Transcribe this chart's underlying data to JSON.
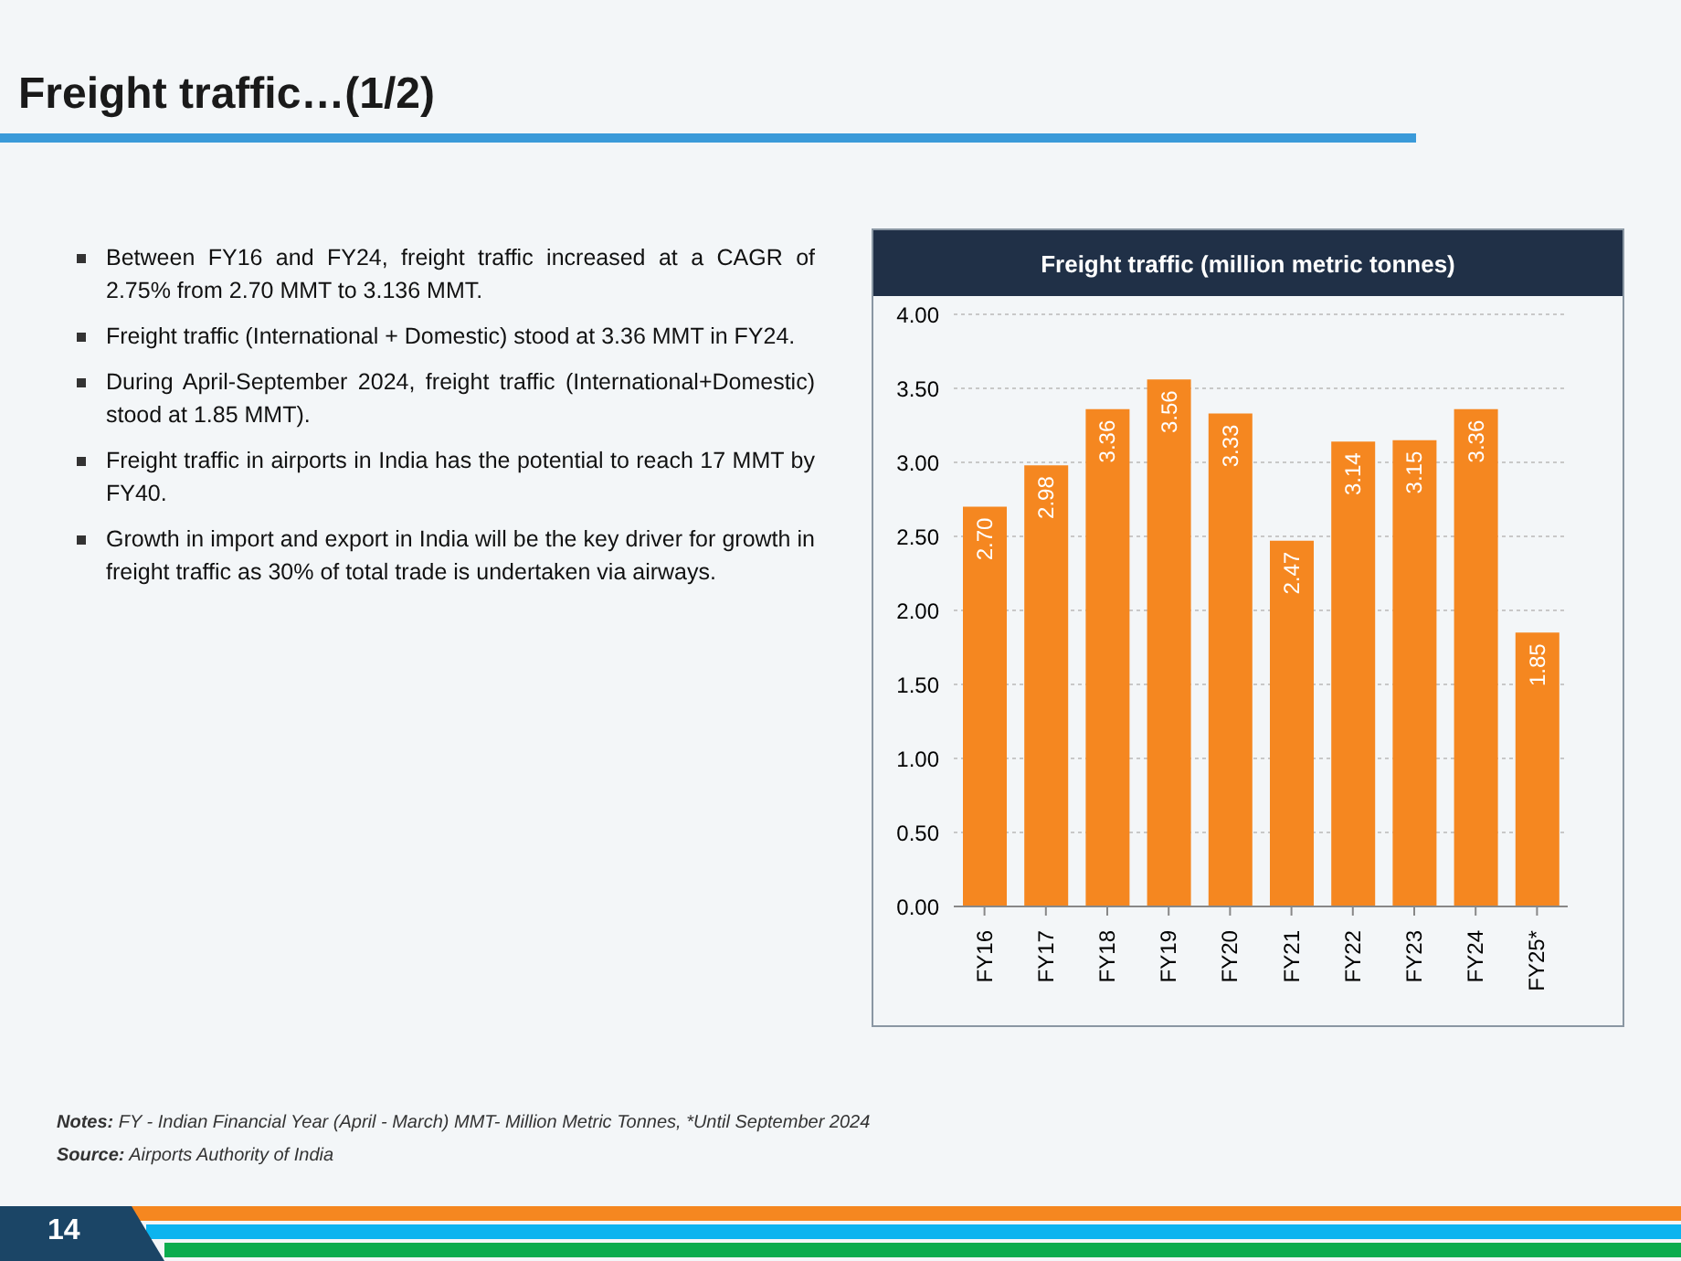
{
  "chart_data": {
    "type": "bar",
    "title": "Freight traffic…(1/2)",
    "subtitle": "Freight traffic (million metric tonnes)",
    "categories": [
      "FY16",
      "FY17",
      "FY18",
      "FY19",
      "FY20",
      "FY21",
      "FY22",
      "FY23",
      "FY24",
      "FY25*"
    ],
    "values": [
      2.7,
      2.98,
      3.36,
      3.56,
      3.33,
      2.47,
      3.14,
      3.15,
      3.36,
      1.85
    ],
    "value_labels": [
      "2.70",
      "2.98",
      "3.36",
      "3.56",
      "3.33",
      "2.47",
      "3.14",
      "3.15",
      "3.36",
      "1.85"
    ],
    "color": "#f58720",
    "ylim": [
      0,
      4
    ],
    "yticks": [
      {
        "value": 0,
        "label": "0.00"
      },
      {
        "value": 0.5,
        "label": "0.50"
      },
      {
        "value": 1,
        "label": "1.00"
      },
      {
        "value": 1.5,
        "label": "1.50"
      },
      {
        "value": 2,
        "label": "2.00"
      },
      {
        "value": 2.5,
        "label": "2.50"
      },
      {
        "value": 3,
        "label": "3.00"
      },
      {
        "value": 3.5,
        "label": "3.50"
      },
      {
        "value": 4,
        "label": "4.00"
      }
    ],
    "grid": "y",
    "legend": false,
    "annotations": [
      "Between FY16 and FY24, freight traffic increased at a CAGR of 2.75% from 2.70 MMT to 3.136 MMT.",
      "Freight traffic (International + Domestic) stood at 3.36 MMT in FY24.",
      "During April-September 2024, freight traffic (International+Domestic) stood at 1.85 MMT).",
      "Freight traffic in airports in India has the potential to reach 17 MMT by FY40.",
      "Growth in import and export in India will be the key driver for growth in freight traffic as 30% of total trade is undertaken via airways.",
      "Notes: FY - Indian Financial Year (April - March) MMT- Million Metric Tonnes, *Until September 2024",
      "Source: Airports Authority of India",
      "14"
    ]
  }
}
